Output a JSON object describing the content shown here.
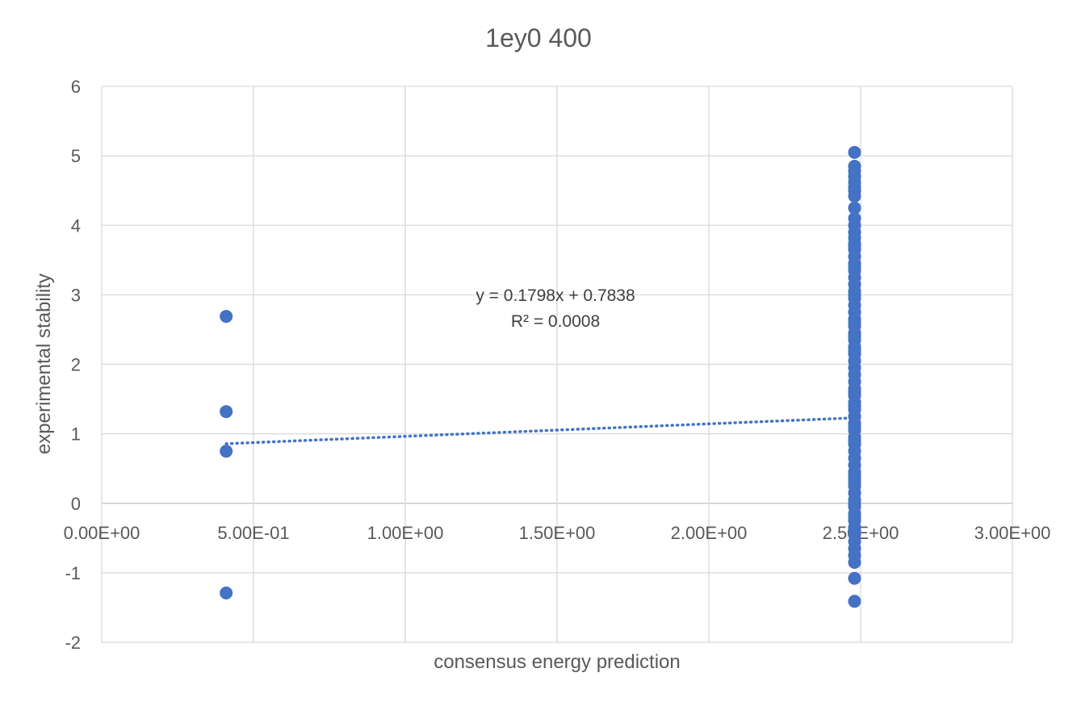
{
  "chart_data": {
    "type": "scatter",
    "title": "1ey0 400",
    "xlabel": "consensus energy prediction",
    "ylabel": "experimental stability",
    "xlim": [
      0,
      3
    ],
    "ylim": [
      -2,
      6
    ],
    "x_ticks": [
      0,
      0.5,
      1.0,
      1.5,
      2.0,
      2.5,
      3.0
    ],
    "x_tick_labels": [
      "0.00E+00",
      "5.00E-01",
      "1.00E+00",
      "1.50E+00",
      "2.00E+00",
      "2.50E+00",
      "3.00E+00"
    ],
    "y_ticks": [
      -2,
      -1,
      0,
      1,
      2,
      3,
      4,
      5,
      6
    ],
    "y_tick_labels": [
      "-2",
      "-1",
      "0",
      "1",
      "2",
      "3",
      "4",
      "5",
      "6"
    ],
    "grid": true,
    "legend": "none",
    "colors": {
      "points": "#4472C4",
      "trendline": "#4472C4",
      "grid": "#D9D9D9",
      "axis": "#BFBFBF"
    },
    "series": [
      {
        "x": [
          0.41,
          0.41,
          0.41,
          0.41,
          2.48,
          2.48,
          2.48,
          2.48,
          2.48,
          2.48,
          2.48,
          2.48,
          2.48,
          2.48,
          2.48,
          2.48,
          2.48,
          2.48,
          2.48,
          2.48,
          2.48,
          2.48,
          2.48,
          2.48,
          2.48,
          2.48,
          2.48,
          2.48,
          2.48,
          2.48,
          2.48,
          2.48,
          2.48,
          2.48,
          2.48,
          2.48,
          2.48,
          2.48,
          2.48,
          2.48,
          2.48,
          2.48,
          2.48,
          2.48,
          2.48,
          2.48,
          2.48,
          2.48,
          2.48,
          2.48,
          2.48,
          2.48,
          2.48,
          2.48,
          2.48,
          2.48,
          2.48,
          2.48,
          2.48,
          2.48,
          2.48,
          2.48,
          2.48,
          2.48,
          2.48,
          2.48,
          2.48,
          2.48,
          2.48,
          2.48,
          2.48,
          2.48,
          2.48,
          2.48,
          2.48,
          2.48,
          2.48,
          2.48,
          2.48,
          2.48,
          2.48
        ],
        "y": [
          2.69,
          1.32,
          0.75,
          -1.29,
          5.05,
          4.85,
          4.78,
          4.7,
          4.62,
          4.55,
          4.42,
          4.25,
          4.1,
          3.9,
          3.82,
          3.74,
          3.65,
          3.55,
          3.45,
          3.35,
          3.25,
          3.15,
          3.05,
          2.95,
          2.85,
          2.75,
          2.65,
          2.55,
          2.45,
          2.35,
          2.25,
          2.15,
          2.05,
          1.95,
          1.85,
          1.75,
          1.65,
          1.55,
          1.45,
          1.35,
          1.25,
          1.15,
          1.05,
          0.95,
          0.85,
          0.75,
          0.65,
          0.55,
          0.45,
          0.35,
          0.25,
          0.15,
          0.05,
          -0.05,
          -0.15,
          -0.25,
          -0.35,
          -0.45,
          -0.55,
          -0.65,
          -0.75,
          -0.85,
          -1.08,
          -1.41,
          3.7,
          3.0,
          2.2,
          1.6,
          0.9,
          0.3,
          -0.4,
          2.6,
          1.1,
          0.0,
          -0.2,
          0.4,
          1.4,
          2.4,
          3.4,
          4.0,
          4.5
        ]
      }
    ],
    "trendline": {
      "type": "linear",
      "slope": 0.1798,
      "intercept": 0.7838,
      "x_range": [
        0.41,
        2.48
      ],
      "equation": "y = 0.1798x + 0.7838",
      "r_squared": "R² = 0.0008"
    }
  }
}
